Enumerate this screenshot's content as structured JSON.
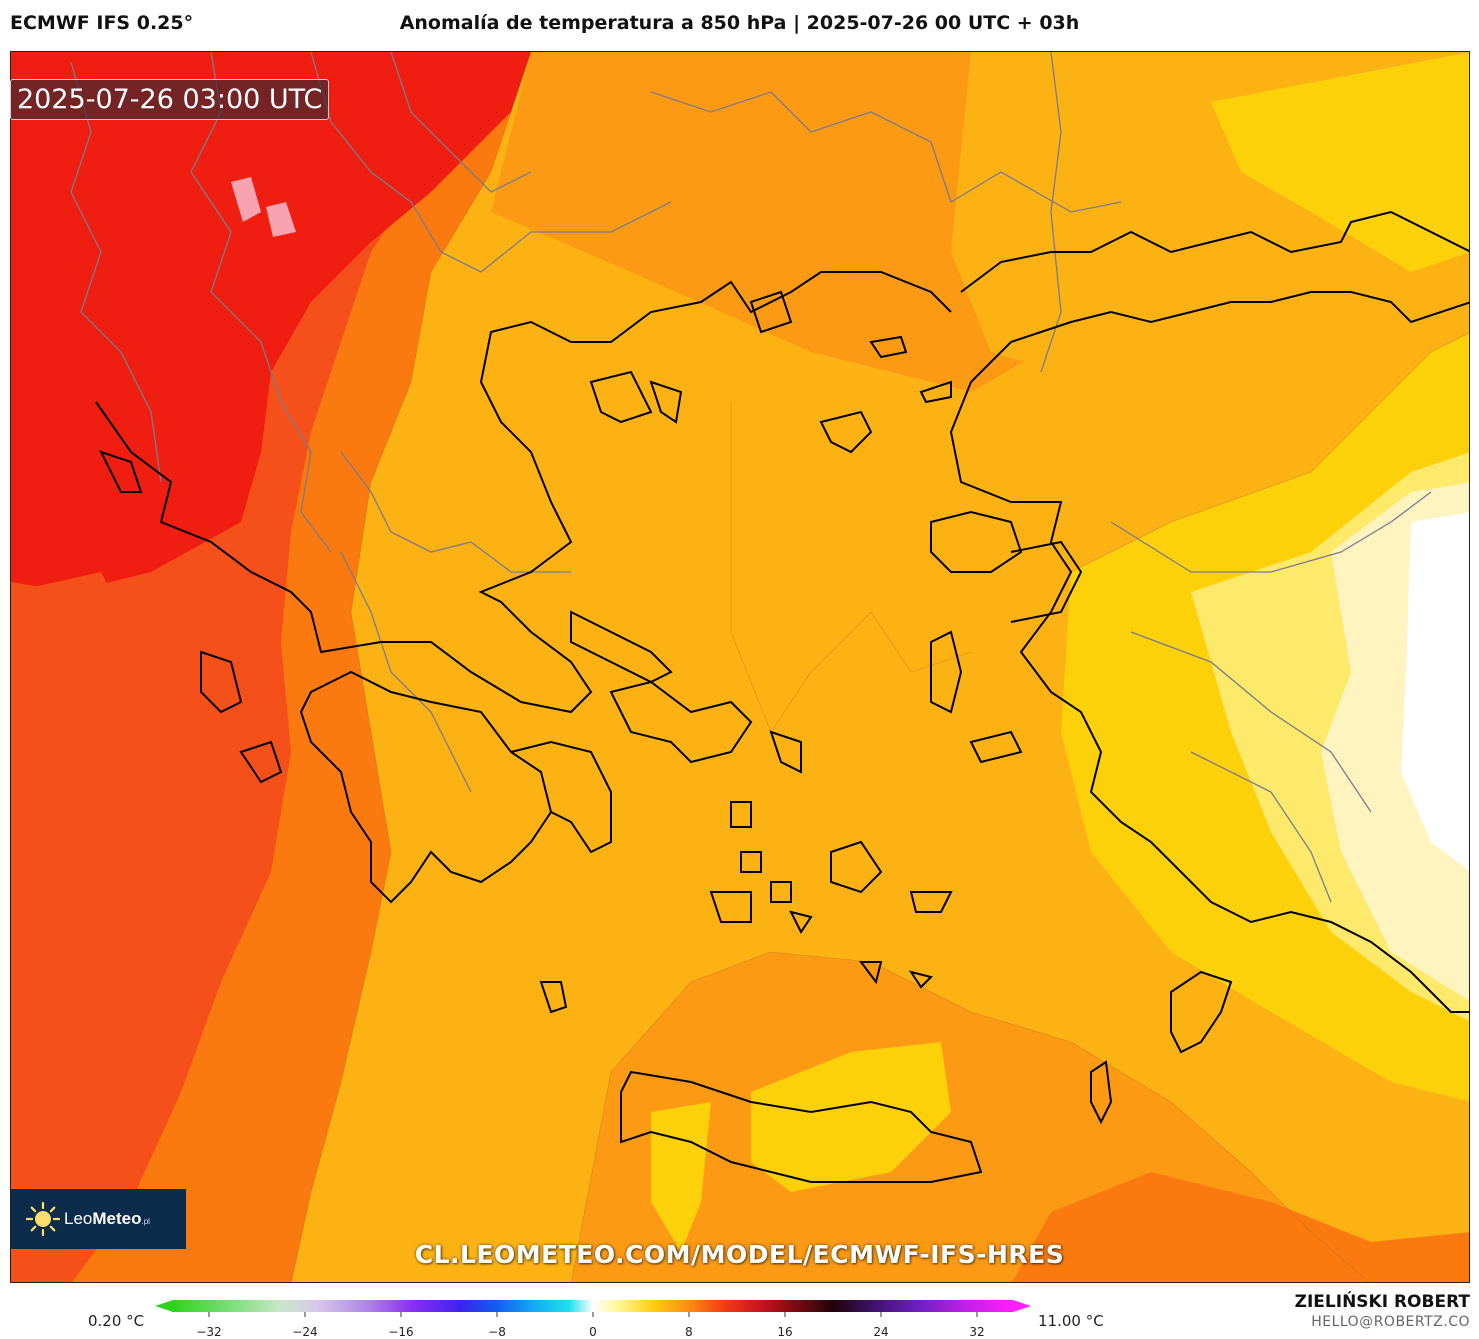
{
  "header": {
    "model": "ECMWF IFS 0.25°",
    "title": "Anomalía de temperatura a 850 hPa | 2025-07-26 00 UTC + 03h"
  },
  "map": {
    "valid_time": "2025-07-26 03:00 UTC",
    "watermark": "CL.LEOMETEO.COM/MODEL/ECMWF-IFS-HRES",
    "logo": {
      "name": "Leo",
      "strong": "Meteo",
      "suffix": ".pl"
    },
    "colors": {
      "red": "#f01e10",
      "red_orange": "#f5501a",
      "orange": "#fa7a10",
      "orange_light": "#fc9a14",
      "amber": "#fdb214",
      "yellow": "#fcd10a",
      "pale_yellow": "#fde96a",
      "cream": "#fff4c0",
      "coast": "#000000",
      "borders": "#7b7b8b"
    }
  },
  "legend": {
    "min_label": "0.20 °C",
    "max_label": "11.00 °C",
    "ticks": [
      "−32",
      "−24",
      "−16",
      "−8",
      "0",
      "8",
      "16",
      "24",
      "32"
    ],
    "tick_values": [
      -32,
      -24,
      -16,
      -8,
      0,
      8,
      16,
      24,
      32
    ],
    "range": [
      -35,
      35
    ],
    "stops": [
      [
        "-35",
        "#2dd31c"
      ],
      [
        "-30",
        "#7ce07c"
      ],
      [
        "-26",
        "#c9e6c9"
      ],
      [
        "-23",
        "#d8c8ea"
      ],
      [
        "-19",
        "#b088e6"
      ],
      [
        "-15",
        "#8a2ef0"
      ],
      [
        "-11",
        "#3b23f0"
      ],
      [
        "-8",
        "#1060f0"
      ],
      [
        "-5",
        "#14a8f4"
      ],
      [
        "-2",
        "#1ee0f0"
      ],
      [
        "0",
        "#ffffff"
      ],
      [
        "2",
        "#fff79a"
      ],
      [
        "5",
        "#fdcf10"
      ],
      [
        "8",
        "#fb8c10"
      ],
      [
        "11",
        "#f33a12"
      ],
      [
        "14",
        "#c8141e"
      ],
      [
        "17",
        "#7a0a12"
      ],
      [
        "20",
        "#200408"
      ],
      [
        "23",
        "#3a1060"
      ],
      [
        "27",
        "#6a20c0"
      ],
      [
        "31",
        "#c020e8"
      ],
      [
        "35",
        "#ff20ff"
      ]
    ]
  },
  "credit": {
    "author": "ZIELIŃSKI ROBERT",
    "email": "HELLO@ROBERTZ.CO"
  }
}
